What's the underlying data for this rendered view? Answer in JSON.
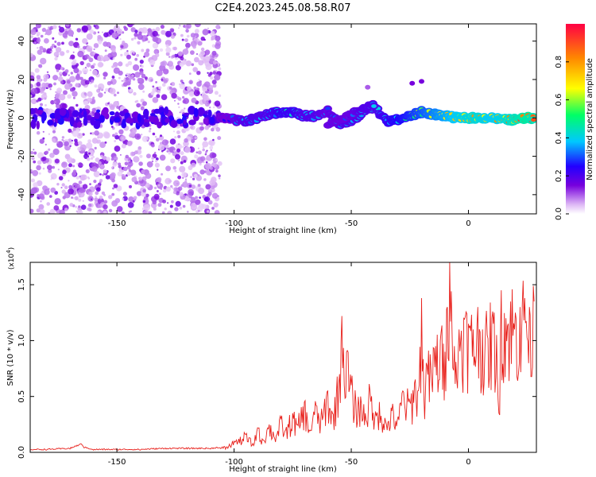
{
  "title": "C2E4.2023.245.08.58.R07",
  "chart_data": [
    {
      "type": "heatmap",
      "xlabel": "Height of straight line (km)",
      "ylabel": "Frequency (Hz)",
      "xlim": [
        -187,
        29
      ],
      "ylim": [
        -50,
        49
      ],
      "xticks": [
        -150,
        -100,
        -50,
        0
      ],
      "yticks": [
        -40,
        -20,
        0,
        20,
        40
      ],
      "xtick_labels": [
        "-150",
        "-100",
        "-50",
        "0"
      ],
      "ytick_labels": [
        "-40",
        "-20",
        "0",
        "20",
        "40"
      ],
      "grid": false,
      "noise_region_x": [
        -187,
        -106
      ],
      "signal_track": [
        {
          "x": -106,
          "y": 0,
          "amp": 0.2
        },
        {
          "x": -100,
          "y": -1,
          "amp": 0.3
        },
        {
          "x": -95,
          "y": -2,
          "amp": 0.35
        },
        {
          "x": -90,
          "y": 0,
          "amp": 0.35
        },
        {
          "x": -85,
          "y": 2,
          "amp": 0.35
        },
        {
          "x": -80,
          "y": 3,
          "amp": 0.4
        },
        {
          "x": -75,
          "y": 3,
          "amp": 0.4
        },
        {
          "x": -70,
          "y": 1,
          "amp": 0.35
        },
        {
          "x": -65,
          "y": 1,
          "amp": 0.35
        },
        {
          "x": -60,
          "y": 4,
          "amp": 0.3
        },
        {
          "x": -55,
          "y": -3,
          "amp": 0.35
        },
        {
          "x": -50,
          "y": -2,
          "amp": 0.35
        },
        {
          "x": -45,
          "y": 3,
          "amp": 0.35
        },
        {
          "x": -40,
          "y": 6,
          "amp": 0.35
        },
        {
          "x": -35,
          "y": -2,
          "amp": 0.4
        },
        {
          "x": -30,
          "y": -1,
          "amp": 0.45
        },
        {
          "x": -25,
          "y": 1,
          "amp": 0.5
        },
        {
          "x": -20,
          "y": 3,
          "amp": 0.55
        },
        {
          "x": -15,
          "y": 2,
          "amp": 0.6
        },
        {
          "x": -10,
          "y": 1,
          "amp": 0.65
        },
        {
          "x": -5,
          "y": 0,
          "amp": 0.7
        },
        {
          "x": 0,
          "y": 0,
          "amp": 0.75
        },
        {
          "x": 5,
          "y": 0,
          "amp": 0.75
        },
        {
          "x": 10,
          "y": 0,
          "amp": 0.7
        },
        {
          "x": 15,
          "y": -1,
          "amp": 0.75
        },
        {
          "x": 20,
          "y": -1,
          "amp": 0.8
        },
        {
          "x": 25,
          "y": 0,
          "amp": 0.85
        },
        {
          "x": 28,
          "y": 0,
          "amp": 0.8
        }
      ],
      "secondary_track": [
        {
          "x": -60,
          "y": -3,
          "amp": 0.3
        },
        {
          "x": -55,
          "y": -1,
          "amp": 0.3
        },
        {
          "x": -50,
          "y": 2,
          "amp": 0.3
        },
        {
          "x": -45,
          "y": 5,
          "amp": 0.35
        },
        {
          "x": -40,
          "y": 7,
          "amp": 0.35
        }
      ],
      "detached_blobs": [
        {
          "x": -24,
          "y": 18,
          "amp": 0.15
        },
        {
          "x": -20,
          "y": 19,
          "amp": 0.15
        },
        {
          "x": -43,
          "y": 16,
          "amp": 0.1
        }
      ],
      "colorbar": {
        "label": "Normalized spectral amplitude",
        "range": [
          0,
          1
        ],
        "ticks": [
          0.0,
          0.2,
          0.4,
          0.6,
          0.8
        ],
        "tick_labels": [
          "0.0",
          "0.2",
          "0.4",
          "0.6",
          "0.8"
        ],
        "colors": [
          "#ffffff",
          "#ddb6f5",
          "#7700dd",
          "#2200ff",
          "#00c8ff",
          "#00ff66",
          "#ffff00",
          "#ff8800",
          "#ff0044"
        ]
      }
    },
    {
      "type": "line",
      "xlabel": "Height of straight line (km)",
      "ylabel": "SNR (10 * v/v)",
      "scale_label": "(x10",
      "scale_exp": "4",
      "scale_close": ")",
      "xlim": [
        -187,
        29
      ],
      "ylim": [
        0,
        1.7
      ],
      "xticks": [
        -150,
        -100,
        -50,
        0
      ],
      "yticks": [
        0.0,
        0.5,
        1.0,
        1.5
      ],
      "xtick_labels": [
        "-150",
        "-100",
        "-50",
        "0"
      ],
      "ytick_labels": [
        "0.0",
        "0.5",
        "1.0",
        "1.5"
      ],
      "grid": false,
      "color": "#e8211c",
      "series": [
        {
          "x": [
            -187,
            -180,
            -170,
            -165,
            -164,
            -160,
            -150,
            -140,
            -130,
            -120,
            -110,
            -106,
            -103,
            -100,
            -98,
            -95,
            -92,
            -90,
            -88,
            -85,
            -82,
            -80,
            -78,
            -75,
            -73,
            -70,
            -68,
            -65,
            -63,
            -60,
            -58,
            -55,
            -54,
            -53,
            -52,
            -50,
            -48,
            -46,
            -44,
            -42,
            -40,
            -38,
            -35,
            -33,
            -30,
            -28,
            -25,
            -23,
            -21,
            -20,
            -19,
            -18,
            -16,
            -14,
            -12,
            -10,
            -9,
            -8,
            -7,
            -6,
            -5,
            -4,
            -2,
            0,
            2,
            4,
            6,
            8,
            10,
            12,
            13,
            14,
            16,
            18,
            20,
            22,
            24,
            26,
            28
          ],
          "y": [
            0.02,
            0.02,
            0.03,
            0.07,
            0.04,
            0.02,
            0.02,
            0.02,
            0.03,
            0.03,
            0.03,
            0.04,
            0.05,
            0.1,
            0.12,
            0.16,
            0.08,
            0.22,
            0.12,
            0.25,
            0.15,
            0.3,
            0.2,
            0.35,
            0.25,
            0.45,
            0.2,
            0.42,
            0.3,
            0.55,
            0.35,
            0.7,
            1.22,
            0.6,
            0.9,
            0.6,
            0.45,
            0.5,
            0.35,
            0.55,
            0.3,
            0.45,
            0.25,
            0.4,
            0.32,
            0.55,
            0.45,
            0.62,
            0.6,
            1.38,
            0.5,
            0.8,
            0.75,
            0.95,
            1.0,
            0.9,
            1.3,
            1.7,
            1.1,
            0.95,
            0.65,
            1.1,
            1.2,
            1.15,
            1.1,
            1.3,
            1.1,
            1.05,
            1.2,
            1.05,
            0.35,
            1.45,
            1.2,
            1.35,
            1.25,
            1.3,
            1.38,
            1.3,
            1.35
          ]
        }
      ]
    }
  ]
}
